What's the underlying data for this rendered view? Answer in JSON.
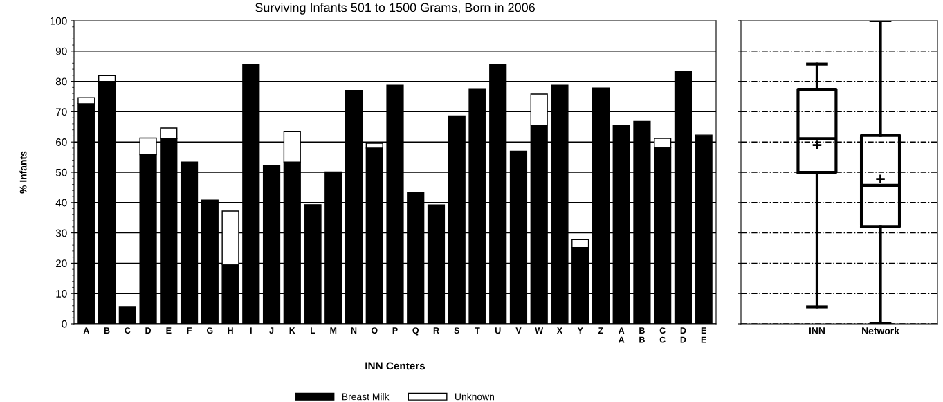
{
  "chart_data": [
    {
      "type": "bar",
      "title": "Surviving Infants 501 to 1500 Grams, Born in 2006",
      "xlabel": "INN Centers",
      "ylabel": "% Infants",
      "categories": [
        "A",
        "B",
        "C",
        "D",
        "E",
        "F",
        "G",
        "H",
        "I",
        "J",
        "K",
        "L",
        "M",
        "N",
        "O",
        "P",
        "Q",
        "R",
        "S",
        "T",
        "U",
        "V",
        "W",
        "X",
        "Y",
        "Z",
        "A\nA",
        "B\nB",
        "C\nC",
        "D\nD",
        "E\nE"
      ],
      "stacked": true,
      "ylim": [
        0,
        100
      ],
      "yticks": [
        0,
        10,
        20,
        30,
        40,
        50,
        60,
        70,
        80,
        90,
        100
      ],
      "grid": "y",
      "legend": "bottom",
      "series": [
        {
          "name": "Breast Milk",
          "color": "#000000",
          "values": [
            72.6,
            80.0,
            5.7,
            55.8,
            61.2,
            53.4,
            40.8,
            19.6,
            85.7,
            52.1,
            53.4,
            39.3,
            50.1,
            77.0,
            58.0,
            78.7,
            43.4,
            39.2,
            68.6,
            77.6,
            85.6,
            57.0,
            65.6,
            78.7,
            25.2,
            77.8,
            65.6,
            66.8,
            58.2,
            83.4,
            62.3
          ]
        },
        {
          "name": "Unknown",
          "color": "#ffffff",
          "values": [
            2.0,
            1.9,
            null,
            5.5,
            3.4,
            null,
            null,
            17.6,
            null,
            null,
            10.0,
            null,
            null,
            null,
            1.6,
            null,
            null,
            null,
            null,
            null,
            null,
            null,
            10.2,
            null,
            2.6,
            null,
            null,
            null,
            3.0,
            null,
            null
          ]
        }
      ]
    },
    {
      "type": "box",
      "categories": [
        "INN",
        "Network"
      ],
      "ylim": [
        0,
        100
      ],
      "yticks": [
        0,
        10,
        20,
        30,
        40,
        50,
        60,
        70,
        80,
        90,
        100
      ],
      "tick_labels": "x",
      "grid": "y",
      "boxes": [
        {
          "low": 5.6,
          "q1": 50.0,
          "median": 61.1,
          "q3": 77.4,
          "high": 85.7,
          "mean": 59.0
        },
        {
          "low": 0,
          "q1": 32.1,
          "median": 45.7,
          "q3": 62.2,
          "high": 100,
          "mean": 47.8
        }
      ]
    }
  ]
}
